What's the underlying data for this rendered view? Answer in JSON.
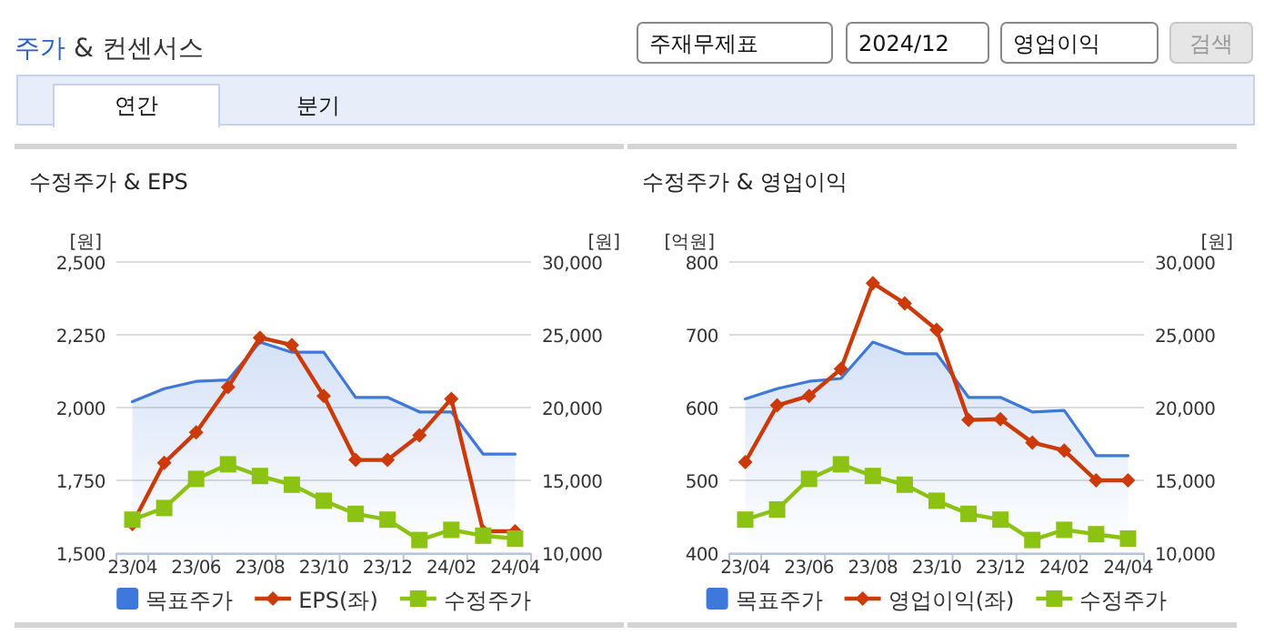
{
  "chart_data": [
    {
      "type": "other",
      "title": "주가 & 컨센서스",
      "annotations": [
        "주재무제표",
        "2024/12",
        "영업이익",
        "검색",
        "연간",
        "분기"
      ]
    },
    {
      "type": "line",
      "title": "수정주가 & EPS",
      "ylabel": "[원]",
      "y2label": "[원]",
      "categories": [
        "23/04",
        null,
        "23/06",
        null,
        "23/08",
        null,
        "23/10",
        null,
        "23/12",
        null,
        "24/02",
        null,
        "24/04"
      ],
      "series": [
        {
          "name": "목표주가",
          "type": "area",
          "axis": "y2",
          "color": "#3f78db",
          "marker": "none",
          "values": [
            20400,
            21300,
            21800,
            21900,
            24500,
            23800,
            23800,
            20700,
            20700,
            19700,
            19700,
            16800,
            16800
          ]
        },
        {
          "name": "EPS(좌)",
          "type": "line",
          "color": "#cc3a0a",
          "marker": "diamond",
          "values": [
            1600,
            1810,
            1915,
            2070,
            2240,
            2215,
            2040,
            1820,
            1820,
            1905,
            2030,
            1575,
            1575
          ]
        },
        {
          "name": "수정주가",
          "type": "line",
          "axis": "y2",
          "color": "#8cc312",
          "marker": "square",
          "values": [
            12300,
            13100,
            15100,
            16100,
            15300,
            14700,
            13600,
            12700,
            12300,
            10900,
            11600,
            11200,
            11000
          ]
        }
      ],
      "ylim": [
        1500,
        2500
      ],
      "yticks": [
        {
          "value": 1500,
          "label": "1,500"
        },
        {
          "value": 1750,
          "label": "1,750"
        },
        {
          "value": 2000,
          "label": "2,000"
        },
        {
          "value": 2250,
          "label": "2,250"
        },
        {
          "value": 2500,
          "label": "2,500"
        }
      ],
      "y2lim": [
        10000,
        30000
      ],
      "y2ticks": [
        {
          "value": 10000,
          "label": "10,000"
        },
        {
          "value": 15000,
          "label": "15,000"
        },
        {
          "value": 20000,
          "label": "20,000"
        },
        {
          "value": 25000,
          "label": "25,000"
        },
        {
          "value": 30000,
          "label": "30,000"
        }
      ],
      "grid": "y",
      "legend": "bottom"
    },
    {
      "type": "line",
      "title": "수정주가 & 영업이익",
      "ylabel": "[억원]",
      "y2label": "[원]",
      "categories": [
        "23/04",
        null,
        "23/06",
        null,
        "23/08",
        null,
        "23/10",
        null,
        "23/12",
        null,
        "24/02",
        null,
        "24/04"
      ],
      "series": [
        {
          "name": "목표주가",
          "type": "area",
          "axis": "y2",
          "color": "#3f78db",
          "marker": "none",
          "values": [
            20600,
            21300,
            21800,
            22000,
            24500,
            23700,
            23700,
            20700,
            20700,
            19700,
            19800,
            16700,
            16700
          ]
        },
        {
          "name": "영업이익(좌)",
          "type": "line",
          "color": "#cc3a0a",
          "marker": "diamond",
          "values": [
            525,
            603,
            616,
            653,
            771,
            743,
            707,
            583,
            584,
            552,
            541,
            500,
            500
          ]
        },
        {
          "name": "수정주가",
          "type": "line",
          "axis": "y2",
          "color": "#8cc312",
          "marker": "square",
          "values": [
            12300,
            13000,
            15100,
            16100,
            15300,
            14700,
            13600,
            12700,
            12300,
            10900,
            11600,
            11300,
            11000
          ]
        }
      ],
      "ylim": [
        400,
        800
      ],
      "yticks": [
        400,
        500,
        600,
        700,
        800
      ],
      "y2lim": [
        10000,
        30000
      ],
      "y2ticks": [
        {
          "value": 10000,
          "label": "10,000"
        },
        {
          "value": 15000,
          "label": "15,000"
        },
        {
          "value": 20000,
          "label": "20,000"
        },
        {
          "value": 25000,
          "label": "25,000"
        },
        {
          "value": 30000,
          "label": "30,000"
        }
      ],
      "grid": "y",
      "legend": "bottom"
    }
  ]
}
